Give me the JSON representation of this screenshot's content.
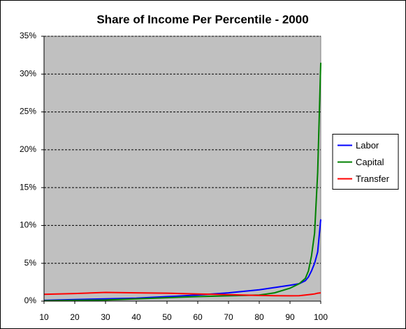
{
  "chart_data": {
    "type": "line",
    "title": "Share of Income Per Percentile - 2000",
    "x": [
      10,
      20,
      30,
      40,
      50,
      60,
      70,
      80,
      85,
      90,
      93,
      95,
      96,
      97,
      98,
      99,
      100
    ],
    "series": [
      {
        "name": "Labor",
        "color": "#0000ff",
        "values": [
          0.1,
          0.2,
          0.3,
          0.4,
          0.6,
          0.8,
          1.1,
          1.5,
          1.8,
          2.1,
          2.3,
          2.7,
          3.2,
          4.0,
          5.0,
          6.5,
          10.8
        ]
      },
      {
        "name": "Capital",
        "color": "#008000",
        "values": [
          0.05,
          0.1,
          0.15,
          0.3,
          0.45,
          0.6,
          0.7,
          0.8,
          1.1,
          1.7,
          2.3,
          3.0,
          4.0,
          6.0,
          9.0,
          17.0,
          31.5
        ]
      },
      {
        "name": "Transfer",
        "color": "#ff0000",
        "values": [
          0.9,
          1.0,
          1.15,
          1.1,
          1.05,
          0.95,
          0.85,
          0.75,
          0.72,
          0.7,
          0.72,
          0.8,
          0.85,
          0.9,
          0.95,
          1.05,
          1.1
        ]
      }
    ],
    "xlim": [
      10,
      100
    ],
    "xticks": [
      10,
      20,
      30,
      40,
      50,
      60,
      70,
      80,
      90,
      100
    ],
    "ylim": [
      0,
      35
    ],
    "yticks": [
      {
        "value": 0,
        "label": "0%"
      },
      {
        "value": 5,
        "label": "5%"
      },
      {
        "value": 10,
        "label": "10%"
      },
      {
        "value": 15,
        "label": "15%"
      },
      {
        "value": 20,
        "label": "20%"
      },
      {
        "value": 25,
        "label": "25%"
      },
      {
        "value": 30,
        "label": "30%"
      },
      {
        "value": 35,
        "label": "35%"
      }
    ],
    "grid": true,
    "legend": "right",
    "plot_background": "#c0c0c0"
  }
}
